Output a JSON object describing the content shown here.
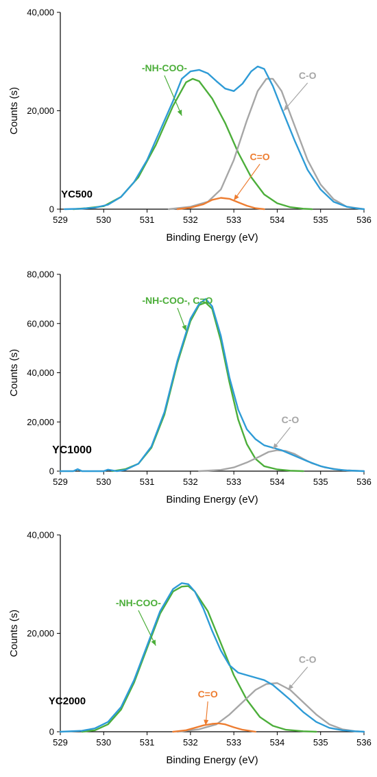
{
  "figure": {
    "colors": {
      "total": "#2e9bd6",
      "nh_coo": "#4cae3a",
      "c_o": "#a6a6a6",
      "c_eq_o": "#ed7d31",
      "axis": "#000000"
    }
  },
  "chart_data": [
    {
      "type": "line",
      "sample_label": "YC500",
      "xlabel": "Binding Energy (eV)",
      "ylabel": "Counts (s)",
      "xlim": [
        529,
        536
      ],
      "ylim": [
        0,
        40000
      ],
      "x_ticks": [
        "529",
        "530",
        "531",
        "532",
        "533",
        "534",
        "535",
        "536"
      ],
      "y_ticks": [
        "0",
        "20,000",
        "40,000"
      ],
      "grid": false,
      "series": [
        {
          "key": "total",
          "color": "#2e9bd6",
          "x": [
            529.1,
            529.5,
            529.8,
            530.1,
            530.4,
            530.7,
            531.0,
            531.3,
            531.6,
            531.8,
            532.0,
            532.2,
            532.4,
            532.6,
            532.8,
            533.0,
            533.2,
            533.4,
            533.55,
            533.7,
            533.9,
            534.1,
            534.4,
            534.7,
            535.0,
            535.3,
            535.6,
            535.8,
            536.0
          ],
          "y": [
            0,
            100,
            300,
            900,
            2500,
            5500,
            10000,
            16000,
            22000,
            26500,
            28000,
            28300,
            27600,
            26000,
            24500,
            24000,
            25500,
            28000,
            29000,
            28500,
            25000,
            20500,
            14000,
            8000,
            4000,
            1500,
            500,
            200,
            0
          ]
        },
        {
          "key": "nh_coo",
          "name": "-NH-COO-",
          "color": "#4cae3a",
          "x": [
            529.3,
            529.6,
            530.0,
            530.4,
            530.8,
            531.2,
            531.6,
            531.9,
            532.05,
            532.2,
            532.5,
            532.8,
            533.1,
            533.4,
            533.7,
            534.0,
            534.3,
            534.6,
            534.8
          ],
          "y": [
            0,
            200,
            600,
            2500,
            6500,
            13000,
            21000,
            25800,
            26500,
            26000,
            22500,
            17500,
            11500,
            6500,
            3000,
            1200,
            400,
            100,
            0
          ]
        },
        {
          "key": "c_o",
          "name": "C-O",
          "color": "#a6a6a6",
          "x": [
            531.5,
            532.0,
            532.4,
            532.7,
            533.0,
            533.3,
            533.55,
            533.75,
            533.9,
            534.1,
            534.4,
            534.7,
            535.0,
            535.3,
            535.6,
            536.0
          ],
          "y": [
            0,
            500,
            1500,
            4000,
            10000,
            18000,
            24000,
            26500,
            26500,
            24000,
            17000,
            10000,
            5000,
            2000,
            500,
            0
          ]
        },
        {
          "key": "c_eq_o",
          "name": "C=O",
          "color": "#ed7d31",
          "x": [
            531.7,
            532.0,
            532.3,
            532.5,
            532.7,
            532.9,
            533.1,
            533.3,
            533.5,
            533.7
          ],
          "y": [
            0,
            300,
            1000,
            1900,
            2300,
            2100,
            1400,
            700,
            200,
            0
          ]
        }
      ],
      "annotations": [
        {
          "text": "-NH-COO-",
          "series": "nh_coo",
          "anchor": [
            531.8,
            19000
          ],
          "text_at": [
            531.4,
            28000
          ]
        },
        {
          "text": "C-O",
          "series": "c_o",
          "anchor": [
            534.15,
            20000
          ],
          "text_at": [
            534.7,
            26500
          ]
        },
        {
          "text": "C=O",
          "series": "c_eq_o",
          "anchor": [
            533.0,
            1800
          ],
          "text_at": [
            533.6,
            10000
          ]
        }
      ]
    },
    {
      "type": "line",
      "sample_label": "YC1000",
      "xlabel": "Binding Energy (eV)",
      "ylabel": "Counts (s)",
      "xlim": [
        529,
        536
      ],
      "ylim": [
        0,
        80000
      ],
      "x_ticks": [
        "529",
        "530",
        "531",
        "532",
        "533",
        "534",
        "535",
        "536"
      ],
      "y_ticks": [
        "0",
        "20,000",
        "40,000",
        "60,000",
        "80,000"
      ],
      "grid": false,
      "series": [
        {
          "key": "total",
          "color": "#2e9bd6",
          "x": [
            529.0,
            529.3,
            529.4,
            529.5,
            529.8,
            530.0,
            530.1,
            530.3,
            530.5,
            530.8,
            531.1,
            531.4,
            531.7,
            532.0,
            532.2,
            532.35,
            532.5,
            532.7,
            532.9,
            533.1,
            533.3,
            533.5,
            533.7,
            533.9,
            534.1,
            534.3,
            534.5,
            534.7,
            535.0,
            535.3,
            535.6,
            536.0
          ],
          "y": [
            0,
            0,
            800,
            0,
            0,
            0,
            600,
            0,
            500,
            3000,
            10000,
            24000,
            45000,
            62000,
            68000,
            70000,
            67000,
            55000,
            38000,
            25000,
            17000,
            13000,
            10500,
            9500,
            8500,
            7000,
            5500,
            4000,
            2000,
            800,
            300,
            0
          ]
        },
        {
          "key": "nh_coo",
          "name": "-NH-COO-,  C=O",
          "color": "#4cae3a",
          "x": [
            530.2,
            530.5,
            530.8,
            531.1,
            531.4,
            531.7,
            532.0,
            532.2,
            532.35,
            532.5,
            532.7,
            532.9,
            533.1,
            533.3,
            533.5,
            533.7,
            534.0,
            534.3,
            534.6
          ],
          "y": [
            0,
            800,
            3000,
            9500,
            23000,
            44000,
            61000,
            67500,
            68500,
            66000,
            53000,
            36000,
            21000,
            11000,
            5000,
            2000,
            700,
            200,
            0
          ]
        },
        {
          "key": "c_o",
          "name": "C-O",
          "color": "#a6a6a6",
          "x": [
            532.2,
            532.7,
            533.0,
            533.3,
            533.6,
            533.8,
            534.0,
            534.2,
            534.4,
            534.6,
            534.8,
            535.1,
            535.5,
            536.0
          ],
          "y": [
            0,
            500,
            1500,
            3500,
            6000,
            7800,
            8500,
            8200,
            7000,
            5000,
            3200,
            1500,
            400,
            0
          ]
        }
      ],
      "annotations": [
        {
          "text": "-NH-COO-,  C=O",
          "series": "nh_coo",
          "anchor": [
            531.9,
            57000
          ],
          "text_at": [
            531.7,
            68000
          ]
        },
        {
          "text": "C-O",
          "series": "c_o",
          "anchor": [
            533.9,
            9000
          ],
          "text_at": [
            534.3,
            19500
          ]
        }
      ]
    },
    {
      "type": "line",
      "sample_label": "YC2000",
      "xlabel": "Binding Energy (eV)",
      "ylabel": "Counts (s)",
      "xlim": [
        529,
        536
      ],
      "ylim": [
        0,
        40000
      ],
      "x_ticks": [
        "529",
        "530",
        "531",
        "532",
        "533",
        "534",
        "535",
        "536"
      ],
      "y_ticks": [
        "0",
        "20,000",
        "40,000"
      ],
      "grid": false,
      "series": [
        {
          "key": "total",
          "color": "#2e9bd6",
          "x": [
            529.0,
            529.5,
            529.8,
            530.1,
            530.4,
            530.7,
            531.0,
            531.3,
            531.6,
            531.8,
            531.95,
            532.1,
            532.3,
            532.5,
            532.7,
            532.9,
            533.1,
            533.3,
            533.5,
            533.7,
            533.9,
            534.1,
            534.3,
            534.6,
            534.9,
            535.2,
            535.5,
            535.8,
            536.0
          ],
          "y": [
            0,
            200,
            700,
            2000,
            5000,
            10500,
            17500,
            24500,
            29000,
            30200,
            30000,
            28500,
            25000,
            20500,
            16500,
            13500,
            12000,
            11500,
            11000,
            10500,
            9500,
            8000,
            6500,
            4000,
            2000,
            800,
            300,
            100,
            0
          ]
        },
        {
          "key": "nh_coo",
          "name": "-NH-COO-",
          "color": "#4cae3a",
          "x": [
            529.5,
            529.8,
            530.1,
            530.4,
            530.7,
            531.0,
            531.3,
            531.6,
            531.8,
            531.95,
            532.1,
            532.4,
            532.7,
            533.0,
            533.3,
            533.6,
            533.9,
            534.2,
            534.6,
            534.9
          ],
          "y": [
            0,
            300,
            1500,
            4500,
            10000,
            17000,
            24000,
            28500,
            29500,
            29600,
            28500,
            24500,
            18000,
            11500,
            6500,
            3000,
            1200,
            400,
            100,
            0
          ]
        },
        {
          "key": "c_o",
          "name": "C-O",
          "color": "#a6a6a6",
          "x": [
            531.7,
            532.2,
            532.6,
            532.9,
            533.2,
            533.5,
            533.75,
            534.0,
            534.3,
            534.6,
            534.9,
            535.2,
            535.5,
            535.8,
            536.0
          ],
          "y": [
            0,
            500,
            1500,
            3500,
            6000,
            8500,
            9700,
            9900,
            8500,
            6000,
            3500,
            1500,
            500,
            100,
            0
          ]
        },
        {
          "key": "c_eq_o",
          "name": "C=O",
          "color": "#ed7d31",
          "x": [
            531.6,
            531.9,
            532.1,
            532.3,
            532.5,
            532.65,
            532.8,
            533.0,
            533.2,
            533.5
          ],
          "y": [
            0,
            300,
            800,
            1300,
            1600,
            1700,
            1500,
            900,
            400,
            0
          ]
        }
      ],
      "annotations": [
        {
          "text": "-NH-COO-",
          "series": "nh_coo",
          "anchor": [
            531.2,
            17500
          ],
          "text_at": [
            530.8,
            25500
          ]
        },
        {
          "text": "C-O",
          "series": "c_o",
          "anchor": [
            534.25,
            8500
          ],
          "text_at": [
            534.7,
            14000
          ]
        },
        {
          "text": "C=O",
          "series": "c_eq_o",
          "anchor": [
            532.35,
            1300
          ],
          "text_at": [
            532.4,
            7000
          ]
        }
      ]
    }
  ]
}
